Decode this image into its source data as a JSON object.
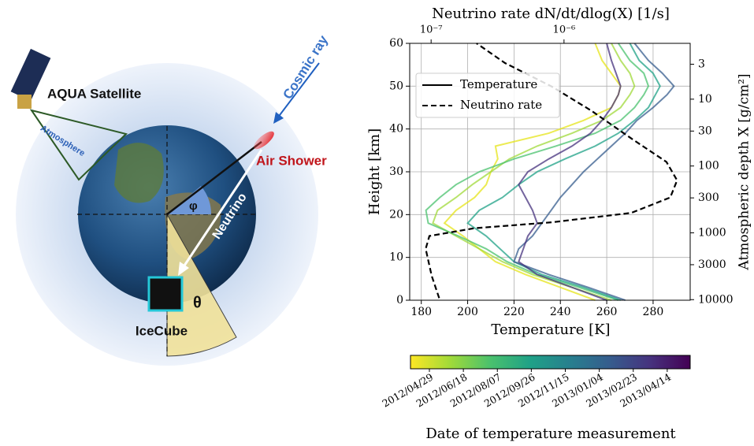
{
  "diagram": {
    "labels": {
      "satellite": "AQUA Satellite",
      "atmosphere": "Atmosphere",
      "cosmic_ray": "Cosmic ray",
      "air_shower": "Air Shower",
      "phi": "φ",
      "neutrino": "Neutrino",
      "theta": "θ",
      "icecube": "IceCube"
    }
  },
  "chart_data": {
    "type": "line",
    "x2label": "Neutrino rate dN/dt/dlog(X)  [1/s]",
    "xlabel": "Temperature [K]",
    "ylabel": "Height [km]",
    "y2label": "Atmospheric depth X [g/cm²]",
    "xlim": [
      175,
      296
    ],
    "xticks": [
      180,
      200,
      220,
      240,
      260,
      280
    ],
    "x2lim": [
      6.9e-08,
      8.9e-06
    ],
    "x2scale": "log",
    "x2ticks": [
      {
        "value": 1e-07,
        "label": "10⁻⁷"
      },
      {
        "value": 1e-06,
        "label": "10⁻⁶"
      }
    ],
    "ylim": [
      0,
      60
    ],
    "yticks": [
      0,
      10,
      20,
      30,
      40,
      50,
      60
    ],
    "y2lim": [
      10200,
      1.46
    ],
    "y2scale": "log",
    "y2ticks": [
      3,
      10,
      30,
      100,
      300,
      1000,
      3000,
      10000
    ],
    "grid": true,
    "legend": "upper left",
    "series": [
      {
        "name": "Temperature",
        "style": "solid",
        "heights": [
          0,
          3,
          6,
          9,
          12,
          15,
          18,
          21,
          24,
          27,
          30,
          33,
          36,
          39,
          42,
          45,
          48,
          50,
          53,
          56,
          60
        ],
        "profiles": [
          {
            "color": "#e5e419",
            "values": [
              255,
              240,
              225,
              212,
              205,
              198,
              190,
              195,
              203,
              208,
              210,
              213,
              212,
              235,
              250,
              262,
              265,
              266,
              262,
              258,
              255
            ]
          },
          {
            "color": "#a0da39",
            "values": [
              262,
              245,
              228,
              215,
              205,
              195,
              185,
              187,
              195,
              202,
              210,
              218,
              230,
              245,
              258,
              266,
              270,
              272,
              270,
              266,
              262
            ]
          },
          {
            "color": "#4ac16d",
            "values": [
              265,
              248,
              230,
              217,
              208,
              196,
              183,
              182,
              188,
              195,
              205,
              220,
              238,
              255,
              266,
              272,
              276,
              278,
              276,
              270,
              265
            ]
          },
          {
            "color": "#1fa187",
            "values": [
              266,
              250,
              232,
              220,
              214,
              208,
              200,
              205,
              215,
              222,
              230,
              242,
              255,
              265,
              272,
              278,
              281,
              283,
              280,
              274,
              270
            ]
          },
          {
            "color": "#365c8d",
            "values": [
              268,
              252,
              235,
              220,
              222,
              228,
              232,
              236,
              240,
              245,
              250,
              256,
              262,
              268,
              273,
              280,
              286,
              289,
              284,
              278,
              272
            ]
          },
          {
            "color": "#46327e",
            "values": [
              260,
              245,
              230,
              222,
              224,
              226,
              230,
              228,
              225,
              222,
              226,
              235,
              245,
              253,
              258,
              262,
              265,
              266,
              264,
              262,
              260
            ]
          }
        ]
      },
      {
        "name": "Neutrino rate",
        "style": "dashed",
        "color": "#000000",
        "axis": "x2",
        "heights": [
          0.5,
          5.7,
          12,
          15,
          16.8,
          18.2,
          20.4,
          24,
          28,
          32.3,
          37.8,
          44.3,
          49.9,
          55.4,
          60
        ],
        "values": [
          1.15e-07,
          1.01e-07,
          9.1e-08,
          9.7e-08,
          2.1e-07,
          8.1e-07,
          3.2e-06,
          6.3e-06,
          7.1e-06,
          5.9e-06,
          3.2e-06,
          1.6e-06,
          8.1e-07,
          3.6e-07,
          2.2e-07
        ]
      }
    ],
    "colorbar": {
      "label": "Date of temperature measurement",
      "colormap": "viridis_r",
      "ticks": [
        "2012/04/29",
        "2012/06/18",
        "2012/08/07",
        "2012/09/26",
        "2012/11/15",
        "2013/01/04",
        "2013/02/23",
        "2013/04/14"
      ]
    }
  }
}
